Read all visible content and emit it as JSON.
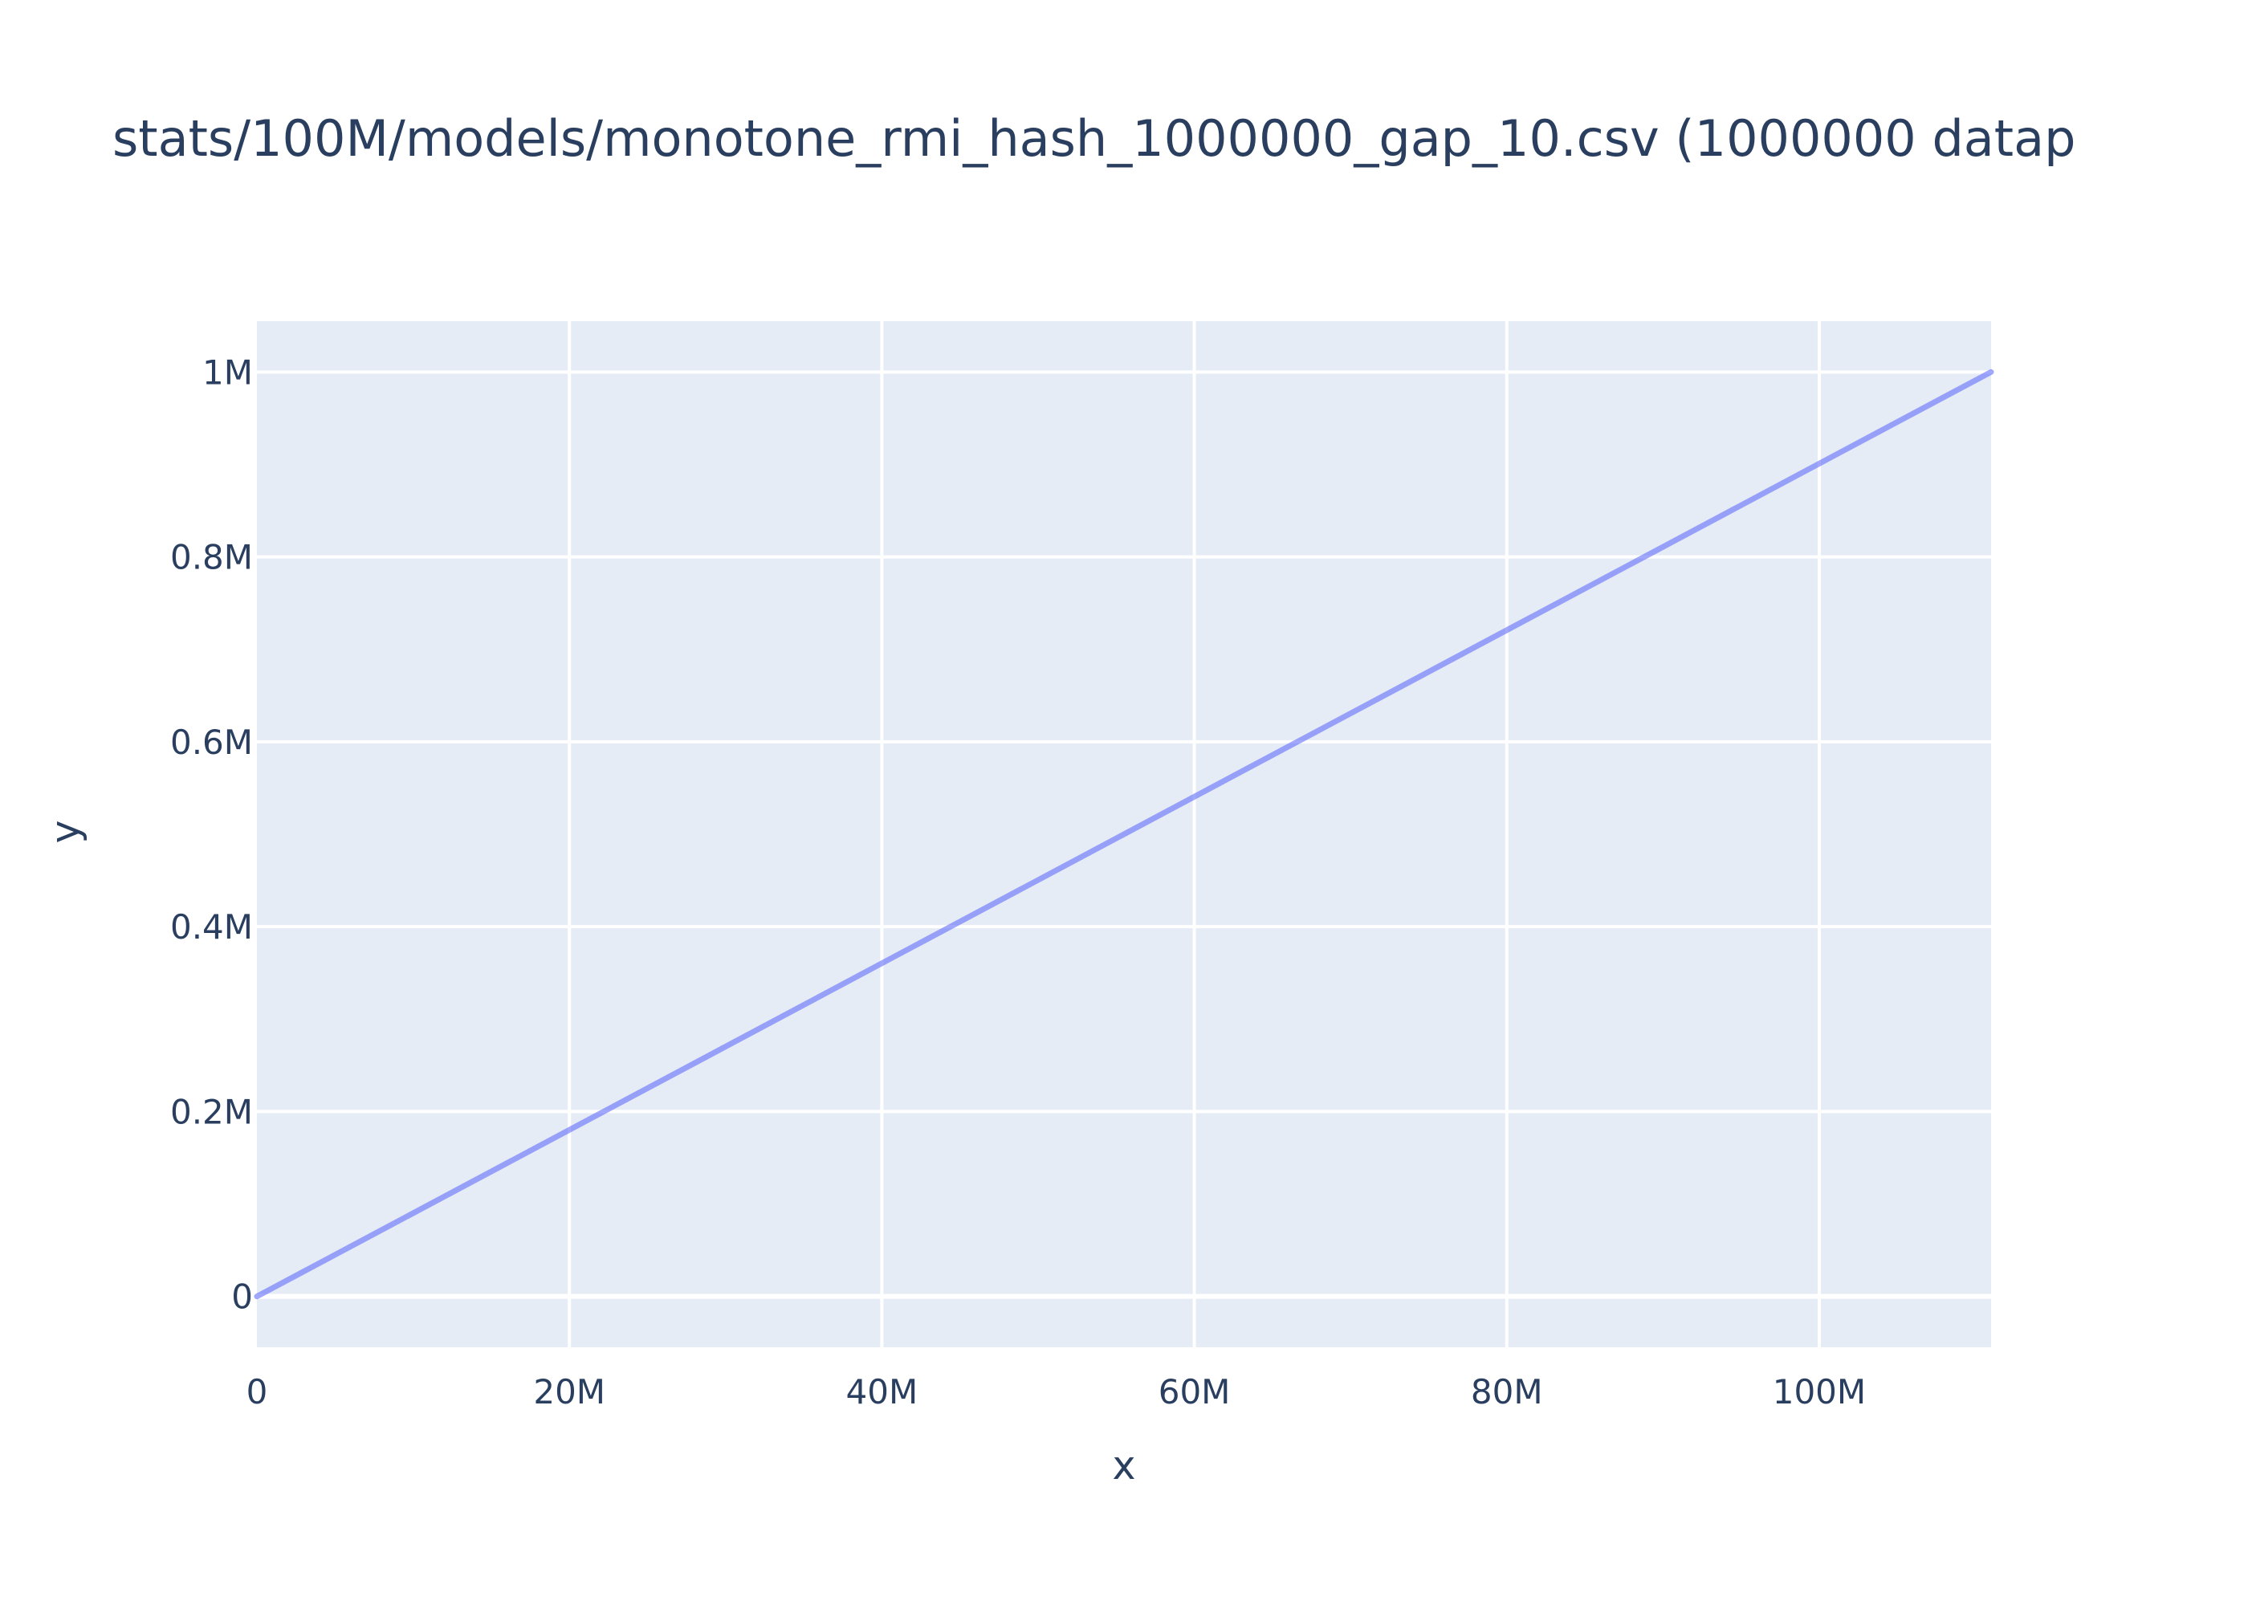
{
  "colors": {
    "plot_background": "#e5ecf6",
    "grid": "#ffffff",
    "text": "#2a3f5f",
    "line": "#636efa"
  },
  "chart_data": {
    "type": "line",
    "title": "stats/100M/models/monotone_rmi_hash_1000000_gap_10.csv (1000000 datap",
    "xlabel": "x",
    "ylabel": "y",
    "xlim": [
      0,
      111000000
    ],
    "ylim": [
      -55000,
      1055000
    ],
    "grid": true,
    "x_ticks": [
      {
        "value": 0,
        "label": "0"
      },
      {
        "value": 20000000,
        "label": "20M"
      },
      {
        "value": 40000000,
        "label": "40M"
      },
      {
        "value": 60000000,
        "label": "60M"
      },
      {
        "value": 80000000,
        "label": "80M"
      },
      {
        "value": 100000000,
        "label": "100M"
      }
    ],
    "y_ticks": [
      {
        "value": 0,
        "label": "0"
      },
      {
        "value": 200000,
        "label": "0.2M"
      },
      {
        "value": 400000,
        "label": "0.4M"
      },
      {
        "value": 600000,
        "label": "0.6M"
      },
      {
        "value": 800000,
        "label": "0.8M"
      },
      {
        "value": 1000000,
        "label": "1M"
      }
    ],
    "series": [
      {
        "x": [
          0,
          111000000
        ],
        "y": [
          0,
          1000000
        ]
      }
    ]
  }
}
